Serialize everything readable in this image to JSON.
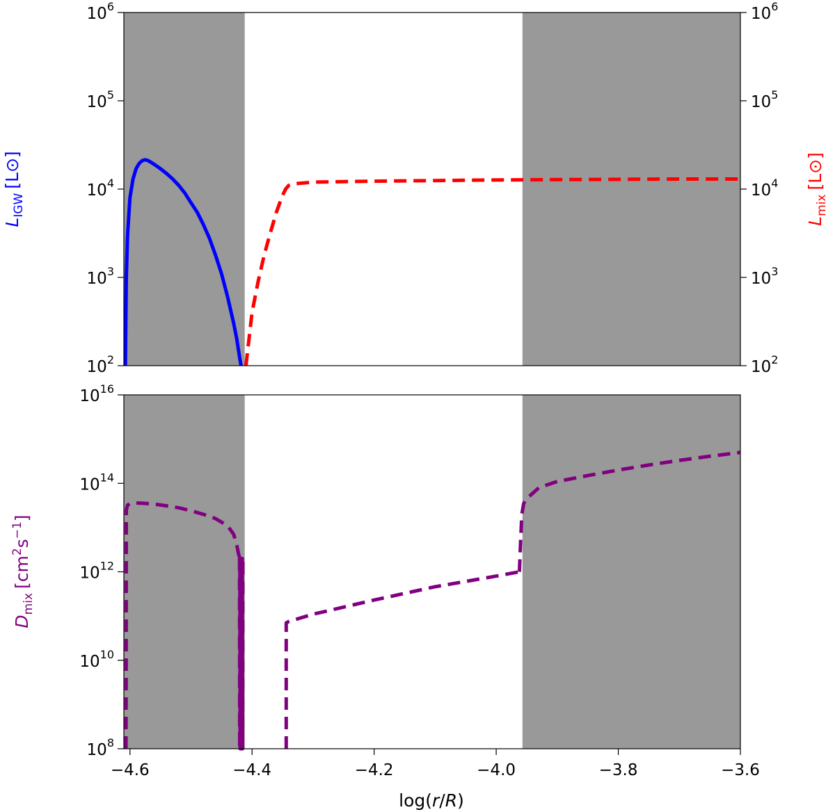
{
  "chart_data": [
    {
      "type": "line",
      "panel": "top",
      "xlim": [
        -4.61,
        -3.6
      ],
      "ylim": [
        100,
        1000000
      ],
      "yscale": "log",
      "grid": false,
      "xlabel": "",
      "ylabel_left": {
        "main": "L",
        "sub": "IGW",
        "unit": "[L⊙]"
      },
      "ylabel_right": {
        "main": "L",
        "sub": "mix",
        "unit": "[L⊙]"
      },
      "yticks": [
        {
          "value": 100,
          "base": "10",
          "exp": "2"
        },
        {
          "value": 1000,
          "base": "10",
          "exp": "3"
        },
        {
          "value": 10000,
          "base": "10",
          "exp": "4"
        },
        {
          "value": 100000,
          "base": "10",
          "exp": "5"
        },
        {
          "value": 1000000,
          "base": "10",
          "exp": "6"
        }
      ],
      "shaded_regions": [
        {
          "x0": -4.61,
          "x1": -4.412,
          "color": "#999999"
        },
        {
          "x0": -3.957,
          "x1": -3.6,
          "color": "#999999"
        }
      ],
      "series": [
        {
          "axis": "left",
          "color": "#0000ff",
          "style": "solid",
          "x": [
            -4.6075,
            -4.606,
            -4.604,
            -4.6,
            -4.595,
            -4.59,
            -4.585,
            -4.58,
            -4.575,
            -4.57,
            -4.565,
            -4.56,
            -4.55,
            -4.54,
            -4.53,
            -4.52,
            -4.51,
            -4.5,
            -4.49,
            -4.48,
            -4.47,
            -4.46,
            -4.45,
            -4.44,
            -4.43,
            -4.425,
            -4.42,
            -4.418
          ],
          "y": [
            100,
            1000,
            3000,
            8000,
            13000,
            17000,
            19500,
            21000,
            21500,
            21000,
            20000,
            19000,
            17000,
            15000,
            13000,
            11000,
            9000,
            7000,
            5500,
            4000,
            2800,
            1800,
            1100,
            600,
            300,
            200,
            120,
            100
          ]
        },
        {
          "axis": "right",
          "color": "#ff0000",
          "style": "dashed",
          "x": [
            -4.41,
            -4.405,
            -4.4,
            -4.39,
            -4.38,
            -4.37,
            -4.36,
            -4.35,
            -4.345,
            -4.34,
            -4.33,
            -4.3,
            -4.2,
            -4.1,
            -4.0,
            -3.9,
            -3.8,
            -3.7,
            -3.6
          ],
          "y": [
            100,
            200,
            400,
            900,
            1800,
            3200,
            5500,
            8500,
            10000,
            11000,
            11500,
            12000,
            12300,
            12500,
            12700,
            12800,
            12900,
            13000,
            13000
          ]
        }
      ]
    },
    {
      "type": "line",
      "panel": "bottom",
      "xlim": [
        -4.61,
        -3.6
      ],
      "ylim": [
        100000000,
        10000000000000000
      ],
      "yscale": "log",
      "grid": false,
      "xlabel": {
        "pre": "log(",
        "var": "r",
        "mid": "/",
        "var2": "R",
        "post": ")"
      },
      "ylabel_left": {
        "main": "D",
        "sub": "mix",
        "unit": "[cm",
        "unit_exp": "2",
        "unit_mid": "s",
        "unit_exp2": "−1",
        "unit_end": "]"
      },
      "xticks": [
        {
          "value": -4.6,
          "label": "−4.6"
        },
        {
          "value": -4.4,
          "label": "−4.4"
        },
        {
          "value": -4.2,
          "label": "−4.2"
        },
        {
          "value": -4.0,
          "label": "−4.0"
        },
        {
          "value": -3.8,
          "label": "−3.8"
        },
        {
          "value": -3.6,
          "label": "−3.6"
        }
      ],
      "yticks": [
        {
          "value": 100000000,
          "base": "10",
          "exp": "8"
        },
        {
          "value": 10000000000,
          "base": "10",
          "exp": "10"
        },
        {
          "value": 1000000000000,
          "base": "10",
          "exp": "12"
        },
        {
          "value": 100000000000000,
          "base": "10",
          "exp": "14"
        },
        {
          "value": 10000000000000000,
          "base": "10",
          "exp": "16"
        }
      ],
      "shaded_regions": [
        {
          "x0": -4.61,
          "x1": -4.412,
          "color": "#999999"
        },
        {
          "x0": -3.957,
          "x1": -3.6,
          "color": "#999999"
        }
      ],
      "series": [
        {
          "axis": "left",
          "color": "#800080",
          "style": "dashed",
          "x": [
            -4.6065,
            -4.6062,
            -4.606,
            -4.604,
            -4.6,
            -4.59,
            -4.58,
            -4.56,
            -4.54,
            -4.52,
            -4.5,
            -4.48,
            -4.46,
            -4.44,
            -4.43,
            -4.425,
            -4.422,
            -4.42
          ],
          "y": [
            100000000,
            4000000000,
            25000000000000,
            32000000000000,
            35000000000000,
            36000000000000,
            35500000000000,
            34000000000000,
            31000000000000,
            28000000000000,
            24000000000000,
            20000000000000,
            16000000000000,
            11000000000000,
            7000000000000,
            4000000000000,
            2500000000000,
            2000000000000
          ]
        },
        {
          "axis": "left",
          "color": "#800080",
          "style": "dashed",
          "x": [
            -4.4205,
            -4.4202,
            -4.4199,
            -4.4195,
            -4.4192,
            -4.419,
            -4.4185,
            -4.4182,
            -4.418,
            -4.4175,
            -4.417,
            -4.4165,
            -4.416,
            -4.4155,
            -4.415
          ],
          "y": [
            2000000000000,
            100000000,
            2000000000000,
            100000000,
            2000000000000,
            100000000,
            2000000000000,
            100000000,
            2000000000000,
            100000000,
            2000000000000,
            100000000,
            2000000000000,
            100000000,
            2000000000000
          ]
        },
        {
          "axis": "left",
          "color": "#800080",
          "style": "dashed",
          "x": [
            -4.344,
            -4.344,
            -4.34,
            -4.3,
            -4.2,
            -4.1,
            -4.0,
            -3.962
          ],
          "y": [
            100000000,
            70000000000,
            75000000000,
            110000000000,
            230000000000,
            460000000000,
            800000000000,
            1000000000000
          ]
        },
        {
          "axis": "left",
          "color": "#800080",
          "style": "dashed",
          "x": [
            -3.962,
            -3.96,
            -3.958,
            -3.955,
            -3.95,
            -3.94,
            -3.93,
            -3.9,
            -3.85,
            -3.8,
            -3.75,
            -3.7,
            -3.65,
            -3.6
          ],
          "y": [
            1000000000000,
            5000000000000,
            20000000000000,
            35000000000000,
            45000000000000,
            60000000000000,
            80000000000000,
            110000000000000,
            150000000000000,
            200000000000000,
            260000000000000,
            330000000000000,
            410000000000000,
            500000000000000
          ]
        }
      ]
    }
  ]
}
